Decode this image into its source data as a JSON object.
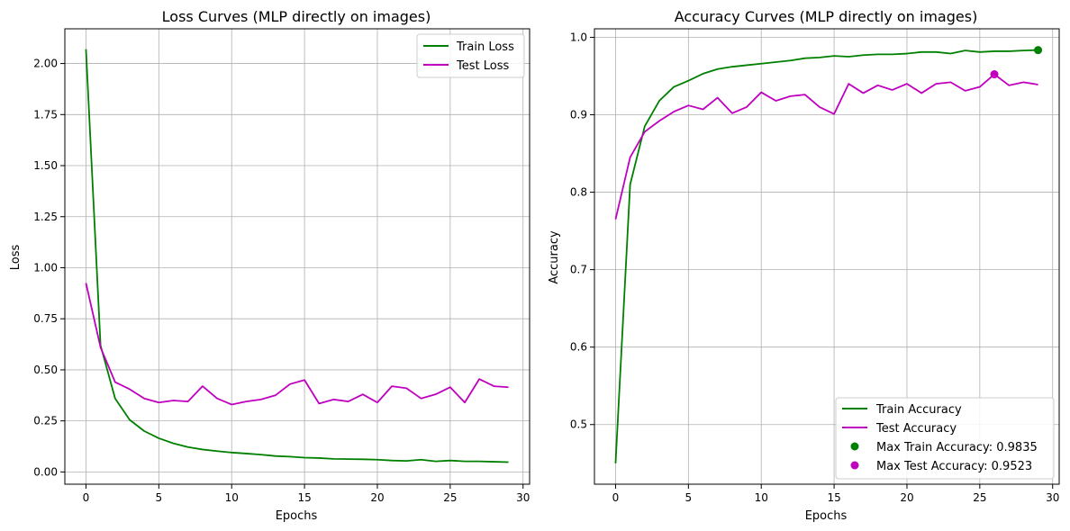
{
  "chart_data": [
    {
      "type": "line",
      "title": "Loss Curves (MLP directly on images)",
      "xlabel": "Epochs",
      "ylabel": "Loss",
      "xlim": [
        -1.45,
        30.45
      ],
      "ylim": [
        -0.06,
        2.17
      ],
      "xticks": [
        0,
        5,
        10,
        15,
        20,
        25,
        30
      ],
      "xtick_labels": [
        "0",
        "5",
        "10",
        "15",
        "20",
        "25",
        "30"
      ],
      "yticks": [
        0,
        0.25,
        0.5,
        0.75,
        1.0,
        1.25,
        1.5,
        1.75,
        2.0
      ],
      "ytick_labels": [
        "0.00",
        "0.25",
        "0.50",
        "0.75",
        "1.00",
        "1.25",
        "1.50",
        "1.75",
        "2.00"
      ],
      "grid": true,
      "legend_position": "upper right",
      "x": [
        0,
        1,
        2,
        3,
        4,
        5,
        6,
        7,
        8,
        9,
        10,
        11,
        12,
        13,
        14,
        15,
        16,
        17,
        18,
        19,
        20,
        21,
        22,
        23,
        24,
        25,
        26,
        27,
        28,
        29
      ],
      "series": [
        {
          "name": "Train Loss",
          "color": "#008000",
          "values": [
            2.07,
            0.62,
            0.36,
            0.255,
            0.2,
            0.165,
            0.14,
            0.122,
            0.11,
            0.102,
            0.095,
            0.09,
            0.085,
            0.078,
            0.075,
            0.07,
            0.068,
            0.064,
            0.063,
            0.062,
            0.06,
            0.056,
            0.054,
            0.06,
            0.052,
            0.056,
            0.052,
            0.052,
            0.05,
            0.048
          ]
        },
        {
          "name": "Test Loss",
          "color": "#bf00bf",
          "values": [
            0.925,
            0.61,
            0.44,
            0.405,
            0.36,
            0.34,
            0.35,
            0.345,
            0.42,
            0.36,
            0.33,
            0.345,
            0.355,
            0.375,
            0.43,
            0.45,
            0.335,
            0.355,
            0.345,
            0.38,
            0.34,
            0.42,
            0.41,
            0.36,
            0.38,
            0.415,
            0.34,
            0.455,
            0.42,
            0.415
          ]
        }
      ]
    },
    {
      "type": "line",
      "title": "Accuracy Curves (MLP directly on images)",
      "xlabel": "Epochs",
      "ylabel": "Accuracy",
      "xlim": [
        -1.45,
        30.45
      ],
      "ylim": [
        0.423,
        1.011
      ],
      "xticks": [
        0,
        5,
        10,
        15,
        20,
        25,
        30
      ],
      "xtick_labels": [
        "0",
        "5",
        "10",
        "15",
        "20",
        "25",
        "30"
      ],
      "yticks": [
        0.5,
        0.6,
        0.7,
        0.8,
        0.9,
        1.0
      ],
      "ytick_labels": [
        "0.5",
        "0.6",
        "0.7",
        "0.8",
        "0.9",
        "1.0"
      ],
      "grid": true,
      "legend_position": "lower right",
      "x": [
        0,
        1,
        2,
        3,
        4,
        5,
        6,
        7,
        8,
        9,
        10,
        11,
        12,
        13,
        14,
        15,
        16,
        17,
        18,
        19,
        20,
        21,
        22,
        23,
        24,
        25,
        26,
        27,
        28,
        29
      ],
      "series": [
        {
          "name": "Train Accuracy",
          "color": "#008000",
          "values": [
            0.45,
            0.81,
            0.885,
            0.918,
            0.936,
            0.944,
            0.953,
            0.959,
            0.962,
            0.964,
            0.966,
            0.968,
            0.97,
            0.973,
            0.974,
            0.976,
            0.975,
            0.977,
            0.978,
            0.978,
            0.979,
            0.981,
            0.981,
            0.979,
            0.983,
            0.981,
            0.982,
            0.982,
            0.983,
            0.9835
          ]
        },
        {
          "name": "Test Accuracy",
          "color": "#bf00bf",
          "values": [
            0.765,
            0.845,
            0.878,
            0.892,
            0.904,
            0.912,
            0.907,
            0.922,
            0.902,
            0.91,
            0.929,
            0.918,
            0.924,
            0.926,
            0.91,
            0.901,
            0.94,
            0.928,
            0.938,
            0.932,
            0.94,
            0.928,
            0.94,
            0.942,
            0.931,
            0.936,
            0.9523,
            0.938,
            0.942,
            0.939
          ]
        }
      ],
      "markers": [
        {
          "name": "Max Train Accuracy: 0.9835",
          "x": 29,
          "y": 0.9835,
          "color": "#008000"
        },
        {
          "name": "Max Test Accuracy: 0.9523",
          "x": 26,
          "y": 0.9523,
          "color": "#bf00bf"
        }
      ]
    }
  ]
}
